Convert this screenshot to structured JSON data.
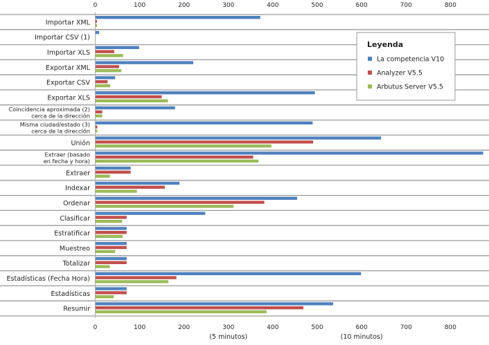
{
  "chart_data": {
    "type": "bar",
    "orientation": "horizontal",
    "categories": [
      "Importar XML",
      "Importar CSV (1)",
      "Importar XLS",
      "Exportar XML",
      "Exportar CSV",
      "Exportar XLS",
      "Coincidencia aproximada (2)|cerca de la dirección",
      "Misma ciudad/estado (3)|cerca de la dirección",
      "Unión",
      "Extraer (basado|en fecha y hora)",
      "Extraer",
      "Indexar",
      "Ordenar",
      "Clasificar",
      "Estratificar",
      "Muestreo",
      "Totalizar",
      "Estadísticas (Fecha Hora)",
      "Estadísticas",
      "Resumir"
    ],
    "series": [
      {
        "name": "La competencia V10",
        "color": "#4f81bd",
        "values": [
          371,
          8,
          98,
          220,
          44,
          494,
          179,
          489,
          643,
          873,
          79,
          189,
          454,
          247,
          70,
          70,
          70,
          598,
          70,
          535
        ]
      },
      {
        "name": "Analyzer V5.5",
        "color": "#c0504d",
        "values": [
          3,
          0,
          42,
          53,
          27,
          149,
          15,
          4,
          490,
          355,
          79,
          156,
          380,
          70,
          70,
          70,
          70,
          182,
          70,
          468
        ]
      },
      {
        "name": "Arbutus Server V5.5",
        "color": "#9bbb59",
        "values": [
          3,
          0,
          62,
          58,
          33,
          163,
          15,
          4,
          396,
          367,
          32,
          93,
          311,
          60,
          61,
          44,
          32,
          164,
          41,
          385
        ]
      }
    ],
    "xlim": [
      0,
      880
    ],
    "x_ticks": [
      "0",
      "100",
      "200",
      "300",
      "400",
      "500",
      "600",
      "700",
      "800"
    ],
    "x_annotations": [
      {
        "at": 300,
        "text": "(5 minutos)"
      },
      {
        "at": 600,
        "text": "(10 minutos)"
      }
    ],
    "legend": {
      "title": "Leyenda",
      "placement": "top-right"
    },
    "grid": "horizontal row separators"
  }
}
